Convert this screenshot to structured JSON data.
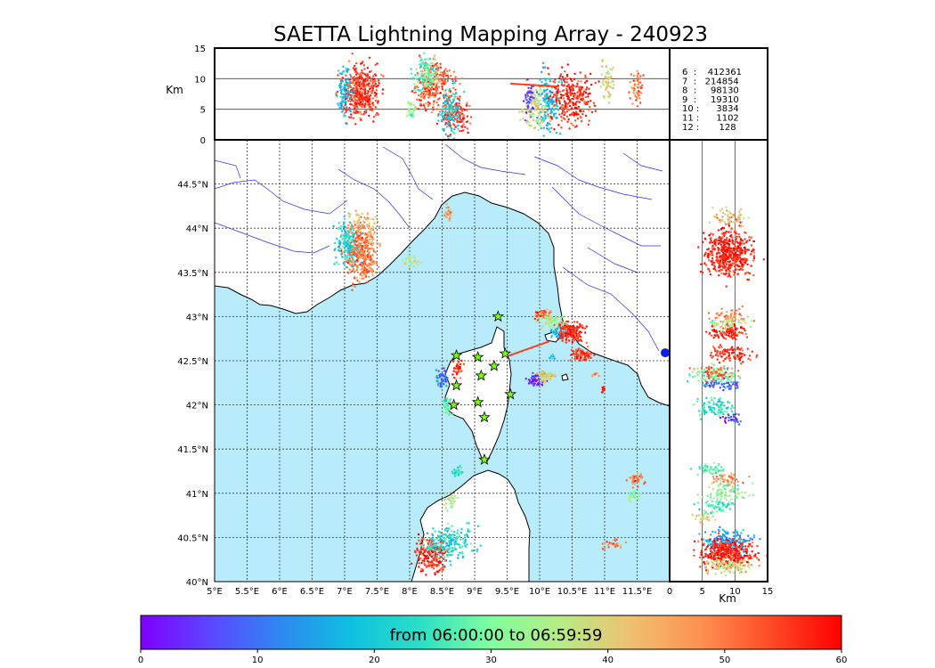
{
  "title": "SAETTA Lightning Mapping Array - 240923",
  "colors": {
    "sea": "#b8ecfb",
    "land": "#ffffff",
    "coast": "#000000",
    "rivers": "#2c2cff",
    "grid": "#333333",
    "highlight": "#ff0000",
    "station": "#7cff00"
  },
  "chart_data": [
    {
      "type": "scatter",
      "name": "plan-view",
      "xlabel": "",
      "ylabel": "",
      "xlim": [
        5.0,
        12.0
      ],
      "ylim": [
        40.0,
        45.0
      ],
      "x_ticks": [
        "5°E",
        "5.5°E",
        "6°E",
        "6.5°E",
        "7°E",
        "7.5°E",
        "8°E",
        "8.5°E",
        "9°E",
        "9.5°E",
        "10°E",
        "10.5°E",
        "11°E",
        "11.5°E"
      ],
      "y_ticks": [
        "40°N",
        "40.5°N",
        "41°N",
        "41.5°N",
        "42°N",
        "42.5°N",
        "43°N",
        "43.5°N",
        "44°N",
        "44.5°N"
      ],
      "grid": true,
      "clusters": [
        {
          "lon": 7.25,
          "lat": 43.72,
          "sx": 0.12,
          "sy": 0.16,
          "t": 50,
          "n": 420
        },
        {
          "lon": 7.05,
          "lat": 43.82,
          "sx": 0.1,
          "sy": 0.12,
          "t": 22,
          "n": 160
        },
        {
          "lon": 7.3,
          "lat": 44.05,
          "sx": 0.12,
          "sy": 0.08,
          "t": 42,
          "n": 60
        },
        {
          "lon": 8.02,
          "lat": 43.62,
          "sx": 0.05,
          "sy": 0.04,
          "t": 36,
          "n": 30
        },
        {
          "lon": 8.6,
          "lat": 44.16,
          "sx": 0.04,
          "sy": 0.04,
          "t": 47,
          "n": 25
        },
        {
          "lon": 10.05,
          "lat": 43.02,
          "sx": 0.07,
          "sy": 0.03,
          "t": 52,
          "n": 60
        },
        {
          "lon": 10.2,
          "lat": 42.95,
          "sx": 0.1,
          "sy": 0.04,
          "t": 35,
          "n": 70
        },
        {
          "lon": 10.3,
          "lat": 42.82,
          "sx": 0.07,
          "sy": 0.03,
          "t": 18,
          "n": 50
        },
        {
          "lon": 10.5,
          "lat": 42.82,
          "sx": 0.09,
          "sy": 0.06,
          "t": 57,
          "n": 180
        },
        {
          "lon": 10.65,
          "lat": 42.57,
          "sx": 0.09,
          "sy": 0.03,
          "t": 55,
          "n": 90
        },
        {
          "lon": 9.95,
          "lat": 42.28,
          "sx": 0.06,
          "sy": 0.03,
          "t": 2,
          "n": 60
        },
        {
          "lon": 10.1,
          "lat": 42.33,
          "sx": 0.07,
          "sy": 0.04,
          "t": 40,
          "n": 70
        },
        {
          "lon": 8.5,
          "lat": 42.3,
          "sx": 0.05,
          "sy": 0.05,
          "t": 10,
          "n": 60
        },
        {
          "lon": 8.58,
          "lat": 42.0,
          "sx": 0.04,
          "sy": 0.06,
          "t": 28,
          "n": 50
        },
        {
          "lon": 8.75,
          "lat": 42.42,
          "sx": 0.04,
          "sy": 0.05,
          "t": 55,
          "n": 40
        },
        {
          "lon": 8.75,
          "lat": 41.25,
          "sx": 0.04,
          "sy": 0.03,
          "t": 24,
          "n": 30
        },
        {
          "lon": 11.48,
          "lat": 41.15,
          "sx": 0.06,
          "sy": 0.04,
          "t": 50,
          "n": 40
        },
        {
          "lon": 11.45,
          "lat": 40.98,
          "sx": 0.05,
          "sy": 0.03,
          "t": 30,
          "n": 30
        },
        {
          "lon": 8.35,
          "lat": 40.3,
          "sx": 0.12,
          "sy": 0.1,
          "t": 58,
          "n": 200
        },
        {
          "lon": 8.6,
          "lat": 40.45,
          "sx": 0.18,
          "sy": 0.1,
          "t": 22,
          "n": 220
        },
        {
          "lon": 8.62,
          "lat": 40.9,
          "sx": 0.05,
          "sy": 0.06,
          "t": 36,
          "n": 30
        },
        {
          "lon": 11.15,
          "lat": 40.42,
          "sx": 0.08,
          "sy": 0.03,
          "t": 50,
          "n": 25
        },
        {
          "lon": 10.98,
          "lat": 42.18,
          "sx": 0.02,
          "sy": 0.02,
          "t": 58,
          "n": 10
        },
        {
          "lon": 10.87,
          "lat": 42.35,
          "sx": 0.03,
          "sy": 0.02,
          "t": 47,
          "n": 10
        },
        {
          "lon": 10.2,
          "lat": 42.55,
          "sx": 0.02,
          "sy": 0.02,
          "t": 18,
          "n": 8
        }
      ],
      "stations": [
        [
          9.36,
          43.0
        ],
        [
          8.72,
          42.56
        ],
        [
          9.05,
          42.54
        ],
        [
          9.47,
          42.58
        ],
        [
          9.3,
          42.44
        ],
        [
          8.72,
          42.22
        ],
        [
          9.1,
          42.33
        ],
        [
          9.55,
          42.12
        ],
        [
          8.68,
          42.0
        ],
        [
          9.05,
          42.03
        ],
        [
          9.15,
          41.86
        ],
        [
          9.15,
          41.38
        ]
      ],
      "streaks": [
        {
          "lon1": 9.5,
          "lat1": 42.55,
          "lon2": 10.15,
          "lat2": 42.72,
          "t": 55
        }
      ],
      "marker": {
        "lon": 12.0,
        "lat": 42.59
      }
    },
    {
      "type": "scatter",
      "name": "lon-altitude",
      "xlim": [
        5.0,
        12.0
      ],
      "ylim": [
        0,
        15
      ],
      "ylabel": "Km",
      "y_ticks": [
        "0",
        "5",
        "10",
        "15"
      ],
      "grid": true,
      "clusters": [
        {
          "x": 7.25,
          "z": 8,
          "sx": 0.14,
          "sz": 3.6,
          "t": 56,
          "n": 420
        },
        {
          "x": 7.0,
          "z": 8,
          "sx": 0.06,
          "sz": 3.5,
          "t": 18,
          "n": 100
        },
        {
          "x": 8.38,
          "z": 9,
          "sx": 0.15,
          "sz": 3.2,
          "t": 52,
          "n": 300
        },
        {
          "x": 8.25,
          "z": 11,
          "sx": 0.1,
          "sz": 2.5,
          "t": 28,
          "n": 120
        },
        {
          "x": 8.7,
          "z": 4,
          "sx": 0.1,
          "sz": 2.6,
          "t": 55,
          "n": 150
        },
        {
          "x": 8.62,
          "z": 5,
          "sx": 0.08,
          "sz": 3.4,
          "t": 20,
          "n": 120
        },
        {
          "x": 8.0,
          "z": 4.8,
          "sx": 0.04,
          "sz": 1.2,
          "t": 33,
          "n": 30
        },
        {
          "x": 9.95,
          "z": 5.5,
          "sx": 0.1,
          "sz": 3,
          "t": 38,
          "n": 140
        },
        {
          "x": 10.15,
          "z": 6,
          "sx": 0.08,
          "sz": 4,
          "t": 18,
          "n": 140
        },
        {
          "x": 10.48,
          "z": 7,
          "sx": 0.16,
          "sz": 3.5,
          "t": 57,
          "n": 280
        },
        {
          "x": 11.05,
          "z": 9.5,
          "sx": 0.05,
          "sz": 2.5,
          "t": 40,
          "n": 60
        },
        {
          "x": 11.5,
          "z": 8.5,
          "sx": 0.05,
          "sz": 2.5,
          "t": 50,
          "n": 60
        },
        {
          "x": 9.85,
          "z": 7,
          "sx": 0.04,
          "sz": 2.5,
          "t": 5,
          "n": 40
        }
      ],
      "streaks": [
        {
          "x1": 9.55,
          "z1": 9.2,
          "x2": 10.3,
          "z2": 8.7,
          "t": 55
        }
      ]
    },
    {
      "type": "scatter",
      "name": "altitude-lat",
      "xlim": [
        0,
        15
      ],
      "ylim": [
        40.0,
        45.0
      ],
      "xlabel": "Km",
      "x_ticks": [
        "0",
        "5",
        "10",
        "15"
      ],
      "grid": true,
      "clusters": [
        {
          "z": 9,
          "lat": 43.72,
          "sx": 3.2,
          "sy": 0.14,
          "t": 58,
          "n": 500
        },
        {
          "z": 9,
          "lat": 44.12,
          "sx": 2.5,
          "sy": 0.05,
          "t": 42,
          "n": 60
        },
        {
          "z": 9,
          "lat": 43.0,
          "sx": 2.2,
          "sy": 0.04,
          "t": 48,
          "n": 60
        },
        {
          "z": 9,
          "lat": 42.9,
          "sx": 2.2,
          "sy": 0.04,
          "t": 35,
          "n": 60
        },
        {
          "z": 9,
          "lat": 42.82,
          "sx": 2.8,
          "sy": 0.04,
          "t": 58,
          "n": 100
        },
        {
          "z": 9.5,
          "lat": 42.58,
          "sx": 2.8,
          "sy": 0.04,
          "t": 57,
          "n": 100
        },
        {
          "z": 7,
          "lat": 42.33,
          "sx": 3,
          "sy": 0.05,
          "t": 30,
          "n": 120
        },
        {
          "z": 7,
          "lat": 42.35,
          "sx": 2.5,
          "sy": 0.04,
          "t": 52,
          "n": 60
        },
        {
          "z": 8,
          "lat": 42.24,
          "sx": 2.2,
          "sy": 0.03,
          "t": 8,
          "n": 50
        },
        {
          "z": 7,
          "lat": 41.97,
          "sx": 2.5,
          "sy": 0.05,
          "t": 24,
          "n": 100
        },
        {
          "z": 9.5,
          "lat": 41.85,
          "sx": 1.5,
          "sy": 0.03,
          "t": 4,
          "n": 30
        },
        {
          "z": 6.5,
          "lat": 41.27,
          "sx": 2,
          "sy": 0.03,
          "t": 26,
          "n": 50
        },
        {
          "z": 9,
          "lat": 41.15,
          "sx": 2.5,
          "sy": 0.04,
          "t": 48,
          "n": 50
        },
        {
          "z": 9,
          "lat": 41.0,
          "sx": 3,
          "sy": 0.05,
          "t": 32,
          "n": 80
        },
        {
          "z": 7,
          "lat": 40.85,
          "sx": 2.5,
          "sy": 0.04,
          "t": 26,
          "n": 60
        },
        {
          "z": 5,
          "lat": 40.72,
          "sx": 1.5,
          "sy": 0.03,
          "t": 40,
          "n": 25
        },
        {
          "z": 9,
          "lat": 40.45,
          "sx": 3.2,
          "sy": 0.07,
          "t": 15,
          "n": 200
        },
        {
          "z": 9,
          "lat": 40.32,
          "sx": 3.5,
          "sy": 0.08,
          "t": 58,
          "n": 350
        },
        {
          "z": 9,
          "lat": 40.18,
          "sx": 3.2,
          "sy": 0.05,
          "t": 40,
          "n": 120
        }
      ]
    },
    {
      "type": "table",
      "name": "counts",
      "rows": [
        {
          "label": "6  :    412361",
          "highlight": false
        },
        {
          "label": "7  :   214854",
          "highlight": true
        },
        {
          "label": "8  :     98130",
          "highlight": false
        },
        {
          "label": "9  :     19310",
          "highlight": false
        },
        {
          "label": "10 :      3834",
          "highlight": false
        },
        {
          "label": "11 :      1102",
          "highlight": false
        },
        {
          "label": "12 :       128",
          "highlight": false
        }
      ]
    },
    {
      "type": "heatmap",
      "name": "colorbar",
      "range": [
        0,
        60
      ],
      "ticks": [
        "0",
        "10",
        "20",
        "30",
        "40",
        "50",
        "60"
      ],
      "label": "from 06:00:00 to 06:59:59"
    }
  ]
}
